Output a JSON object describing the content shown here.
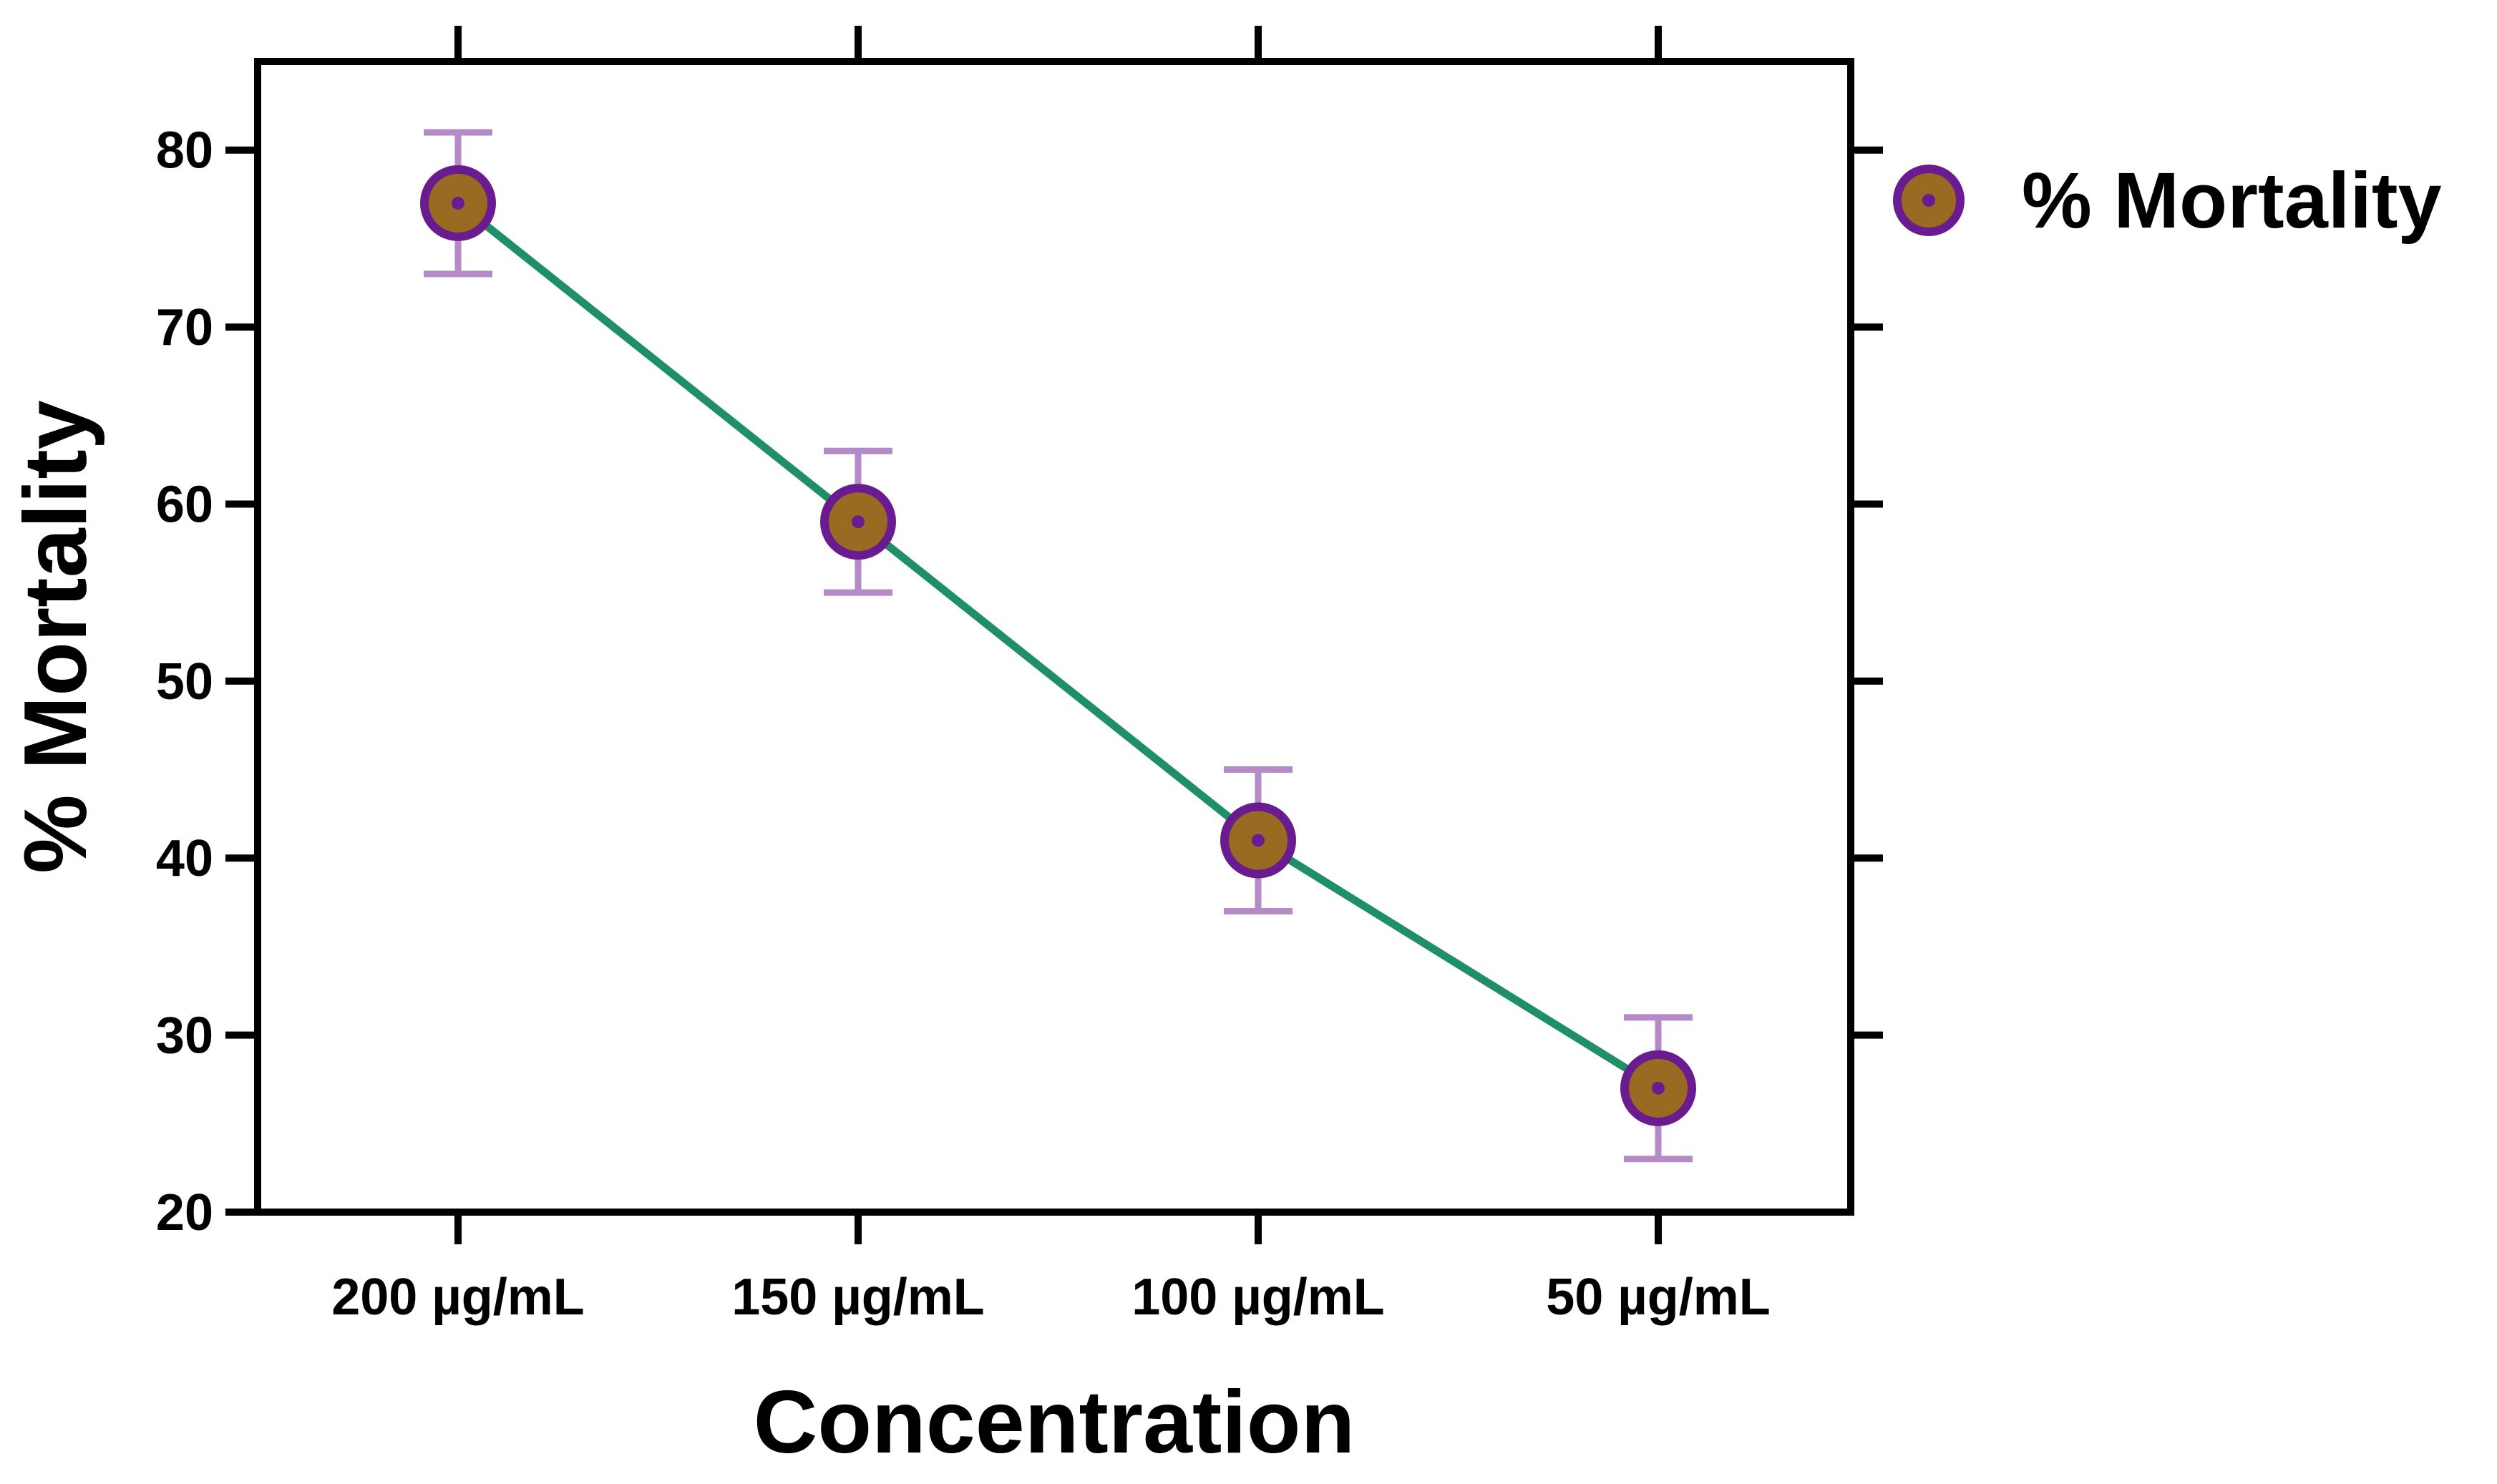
{
  "chart_data": {
    "type": "line",
    "title": "",
    "xlabel": "Concentration",
    "ylabel": "% Mortality",
    "categories": [
      "200 µg/mL",
      "150 µg/mL",
      "100 µg/mL",
      "50 µg/mL"
    ],
    "ylim": [
      20,
      85
    ],
    "yticks": [
      20,
      30,
      40,
      50,
      60,
      70,
      80
    ],
    "grid": false,
    "legend_position": "right",
    "series": [
      {
        "name": "% Mortality",
        "values": [
          77,
          59,
          41,
          27
        ],
        "error": [
          4,
          4,
          4,
          4
        ],
        "line_color": "#1f8f6a",
        "marker_fill": "#9b6a22",
        "marker_edge": "#6a1b8f",
        "errorbar_color": "#b58ac8"
      }
    ]
  }
}
